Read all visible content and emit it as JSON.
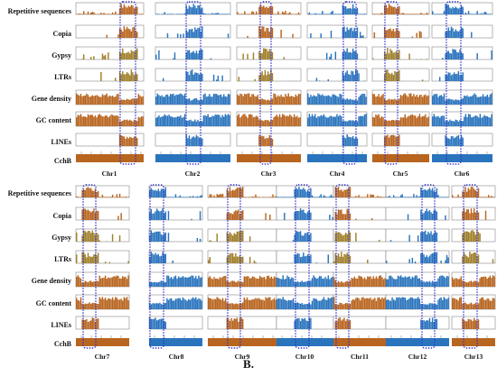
{
  "caption": "B.",
  "colors": {
    "brown": "#b8651f",
    "blue": "#2a74bd",
    "olive": "#a0802a",
    "highlight": "#3333cc",
    "frame": "#888888"
  },
  "track_labels": [
    "Repetitive sequences",
    "Copia",
    "Gypsy",
    "LTRs",
    "Gene density",
    "GC content",
    "LINEs",
    "CchB"
  ],
  "blocks": [
    {
      "chromosomes": [
        {
          "label": "Chr1",
          "color": "brown"
        },
        {
          "label": "Chr2",
          "color": "blue"
        },
        {
          "label": "Chr3",
          "color": "brown"
        },
        {
          "label": "Chr4",
          "color": "blue"
        },
        {
          "label": "Chr5",
          "color": "brown"
        },
        {
          "label": "Chr6",
          "color": "blue"
        }
      ]
    },
    {
      "chromosomes": [
        {
          "label": "Chr7",
          "color": "brown"
        },
        {
          "label": "Chr8",
          "color": "blue"
        },
        {
          "label": "Chr9",
          "color": "brown"
        },
        {
          "label": "Chr10",
          "color": "blue"
        },
        {
          "label": "Chr11",
          "color": "brown"
        },
        {
          "label": "Chr12",
          "color": "blue"
        },
        {
          "label": "Chr13",
          "color": "brown"
        }
      ]
    }
  ]
}
